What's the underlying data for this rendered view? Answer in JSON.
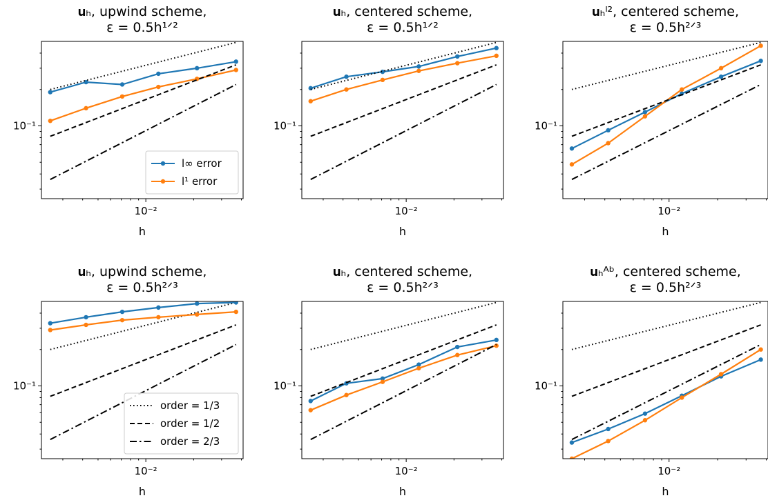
{
  "chart_data": [
    {
      "type": "line",
      "title_lines": [
        "𝐮ₕ, upwind scheme,",
        "ε = 0.5h¹ᐟ²"
      ],
      "xlabel": "h",
      "x_scale": "log",
      "y_scale": "log",
      "xlim": [
        0.0022,
        0.041
      ],
      "ylim": [
        0.025,
        0.5
      ],
      "xticks": [
        {
          "value": 0.01,
          "label": "10⁻²"
        }
      ],
      "yticks": [
        {
          "value": 0.1,
          "label": "10⁻¹"
        }
      ],
      "legend": "lower-right",
      "series": [
        {
          "name": "l∞ error",
          "style": "solid",
          "marker": true,
          "x": [
            0.0025,
            0.0042,
            0.0071,
            0.012,
            0.021,
            0.037
          ],
          "y": [
            0.19,
            0.23,
            0.22,
            0.27,
            0.3,
            0.34
          ]
        },
        {
          "name": "l¹ error",
          "style": "solid",
          "marker": true,
          "x": [
            0.0025,
            0.0042,
            0.0071,
            0.012,
            0.021,
            0.037
          ],
          "y": [
            0.11,
            0.14,
            0.175,
            0.21,
            0.245,
            0.29
          ]
        },
        {
          "name": "",
          "style": "dotted",
          "marker": false,
          "x": [
            0.0025,
            0.037
          ],
          "y": [
            0.2,
            0.49
          ]
        },
        {
          "name": "",
          "style": "dashed",
          "marker": false,
          "x": [
            0.0025,
            0.037
          ],
          "y": [
            0.082,
            0.32
          ]
        },
        {
          "name": "",
          "style": "dashdot",
          "marker": false,
          "x": [
            0.0025,
            0.037
          ],
          "y": [
            0.036,
            0.22
          ]
        }
      ]
    },
    {
      "type": "line",
      "title_lines": [
        "𝐮ₕ, centered scheme,",
        "ε = 0.5h¹ᐟ²"
      ],
      "xlabel": "h",
      "x_scale": "log",
      "y_scale": "log",
      "xlim": [
        0.0022,
        0.041
      ],
      "ylim": [
        0.025,
        0.5
      ],
      "xticks": [
        {
          "value": 0.01,
          "label": "10⁻²"
        }
      ],
      "yticks": [
        {
          "value": 0.1,
          "label": "10⁻¹"
        }
      ],
      "legend": "none",
      "series": [
        {
          "name": "",
          "style": "solid",
          "marker": true,
          "x": [
            0.0025,
            0.0042,
            0.0071,
            0.012,
            0.021,
            0.037
          ],
          "y": [
            0.205,
            0.255,
            0.28,
            0.31,
            0.375,
            0.44
          ]
        },
        {
          "name": "",
          "style": "solid",
          "marker": true,
          "x": [
            0.0025,
            0.0042,
            0.0071,
            0.012,
            0.021,
            0.037
          ],
          "y": [
            0.16,
            0.2,
            0.24,
            0.285,
            0.33,
            0.38
          ]
        },
        {
          "name": "",
          "style": "dotted",
          "marker": false,
          "x": [
            0.0025,
            0.037
          ],
          "y": [
            0.2,
            0.49
          ]
        },
        {
          "name": "",
          "style": "dashed",
          "marker": false,
          "x": [
            0.0025,
            0.037
          ],
          "y": [
            0.082,
            0.32
          ]
        },
        {
          "name": "",
          "style": "dashdot",
          "marker": false,
          "x": [
            0.0025,
            0.037
          ],
          "y": [
            0.036,
            0.22
          ]
        }
      ]
    },
    {
      "type": "line",
      "title_lines": [
        "𝐮ₕˡ², centered scheme,",
        "ε = 0.5h²ᐟ³"
      ],
      "xlabel": "h",
      "x_scale": "log",
      "y_scale": "log",
      "xlim": [
        0.0022,
        0.041
      ],
      "ylim": [
        0.025,
        0.5
      ],
      "xticks": [
        {
          "value": 0.01,
          "label": "10⁻²"
        }
      ],
      "yticks": [
        {
          "value": 0.1,
          "label": "10⁻¹"
        }
      ],
      "legend": "none",
      "series": [
        {
          "name": "",
          "style": "solid",
          "marker": true,
          "x": [
            0.0025,
            0.0042,
            0.0071,
            0.012,
            0.021,
            0.037
          ],
          "y": [
            0.065,
            0.092,
            0.13,
            0.185,
            0.255,
            0.345
          ]
        },
        {
          "name": "",
          "style": "solid",
          "marker": true,
          "x": [
            0.0025,
            0.0042,
            0.0071,
            0.012,
            0.021,
            0.037
          ],
          "y": [
            0.048,
            0.072,
            0.12,
            0.2,
            0.3,
            0.46
          ]
        },
        {
          "name": "",
          "style": "dotted",
          "marker": false,
          "x": [
            0.0025,
            0.037
          ],
          "y": [
            0.2,
            0.49
          ]
        },
        {
          "name": "",
          "style": "dashed",
          "marker": false,
          "x": [
            0.0025,
            0.037
          ],
          "y": [
            0.082,
            0.32
          ]
        },
        {
          "name": "",
          "style": "dashdot",
          "marker": false,
          "x": [
            0.0025,
            0.037
          ],
          "y": [
            0.036,
            0.22
          ]
        }
      ]
    },
    {
      "type": "line",
      "title_lines": [
        "𝐮ₕ, upwind scheme,",
        "ε = 0.5h²ᐟ³"
      ],
      "xlabel": "h",
      "x_scale": "log",
      "y_scale": "log",
      "xlim": [
        0.0022,
        0.041
      ],
      "ylim": [
        0.025,
        0.5
      ],
      "xticks": [
        {
          "value": 0.01,
          "label": "10⁻²"
        }
      ],
      "yticks": [
        {
          "value": 0.1,
          "label": "10⁻¹"
        }
      ],
      "legend": "lower-right",
      "series": [
        {
          "name": "order = 1/3",
          "style": "dotted",
          "marker": false,
          "x": [
            0.0025,
            0.037
          ],
          "y": [
            0.2,
            0.49
          ]
        },
        {
          "name": "order = 1/2",
          "style": "dashed",
          "marker": false,
          "x": [
            0.0025,
            0.037
          ],
          "y": [
            0.082,
            0.32
          ]
        },
        {
          "name": "order = 2/3",
          "style": "dashdot",
          "marker": false,
          "x": [
            0.0025,
            0.037
          ],
          "y": [
            0.036,
            0.22
          ]
        },
        {
          "name": "",
          "style": "solid",
          "marker": true,
          "x": [
            0.0025,
            0.0042,
            0.0071,
            0.012,
            0.021,
            0.037
          ],
          "y": [
            0.33,
            0.37,
            0.41,
            0.445,
            0.48,
            0.49
          ]
        },
        {
          "name": "",
          "style": "solid",
          "marker": true,
          "x": [
            0.0025,
            0.0042,
            0.0071,
            0.012,
            0.021,
            0.037
          ],
          "y": [
            0.29,
            0.32,
            0.35,
            0.37,
            0.39,
            0.41
          ]
        }
      ]
    },
    {
      "type": "line",
      "title_lines": [
        "𝐮ₕ, centered scheme,",
        "ε = 0.5h²ᐟ³"
      ],
      "xlabel": "h",
      "x_scale": "log",
      "y_scale": "log",
      "xlim": [
        0.0022,
        0.041
      ],
      "ylim": [
        0.025,
        0.5
      ],
      "xticks": [
        {
          "value": 0.01,
          "label": "10⁻²"
        }
      ],
      "yticks": [
        {
          "value": 0.1,
          "label": "10⁻¹"
        }
      ],
      "legend": "none",
      "series": [
        {
          "name": "",
          "style": "solid",
          "marker": true,
          "x": [
            0.0025,
            0.0042,
            0.0071,
            0.012,
            0.021,
            0.037
          ],
          "y": [
            0.075,
            0.105,
            0.115,
            0.15,
            0.21,
            0.24
          ]
        },
        {
          "name": "",
          "style": "solid",
          "marker": true,
          "x": [
            0.0025,
            0.0042,
            0.0071,
            0.012,
            0.021,
            0.037
          ],
          "y": [
            0.063,
            0.084,
            0.108,
            0.14,
            0.18,
            0.215
          ]
        },
        {
          "name": "",
          "style": "dotted",
          "marker": false,
          "x": [
            0.0025,
            0.037
          ],
          "y": [
            0.2,
            0.49
          ]
        },
        {
          "name": "",
          "style": "dashed",
          "marker": false,
          "x": [
            0.0025,
            0.037
          ],
          "y": [
            0.082,
            0.32
          ]
        },
        {
          "name": "",
          "style": "dashdot",
          "marker": false,
          "x": [
            0.0025,
            0.037
          ],
          "y": [
            0.036,
            0.22
          ]
        }
      ]
    },
    {
      "type": "line",
      "title_lines": [
        "𝐮ₕᴬᵇ, centered scheme,",
        "ε = 0.5h²ᐟ³"
      ],
      "xlabel": "h",
      "x_scale": "log",
      "y_scale": "log",
      "xlim": [
        0.0022,
        0.041
      ],
      "ylim": [
        0.025,
        0.5
      ],
      "xticks": [
        {
          "value": 0.01,
          "label": "10⁻²"
        }
      ],
      "yticks": [
        {
          "value": 0.1,
          "label": "10⁻¹"
        }
      ],
      "legend": "none",
      "series": [
        {
          "name": "",
          "style": "solid",
          "marker": true,
          "x": [
            0.0025,
            0.0042,
            0.0071,
            0.012,
            0.021,
            0.037
          ],
          "y": [
            0.034,
            0.044,
            0.059,
            0.083,
            0.12,
            0.165
          ]
        },
        {
          "name": "",
          "style": "solid",
          "marker": true,
          "x": [
            0.0025,
            0.0042,
            0.0071,
            0.012,
            0.021,
            0.037
          ],
          "y": [
            0.025,
            0.035,
            0.052,
            0.08,
            0.125,
            0.2
          ]
        },
        {
          "name": "",
          "style": "dotted",
          "marker": false,
          "x": [
            0.0025,
            0.037
          ],
          "y": [
            0.2,
            0.49
          ]
        },
        {
          "name": "",
          "style": "dashed",
          "marker": false,
          "x": [
            0.0025,
            0.037
          ],
          "y": [
            0.082,
            0.32
          ]
        },
        {
          "name": "",
          "style": "dashdot",
          "marker": false,
          "x": [
            0.0025,
            0.037
          ],
          "y": [
            0.036,
            0.22
          ]
        }
      ]
    }
  ],
  "colors": {
    "blue": "#1f77b4",
    "orange": "#ff7f0e",
    "reference": "#000000"
  }
}
